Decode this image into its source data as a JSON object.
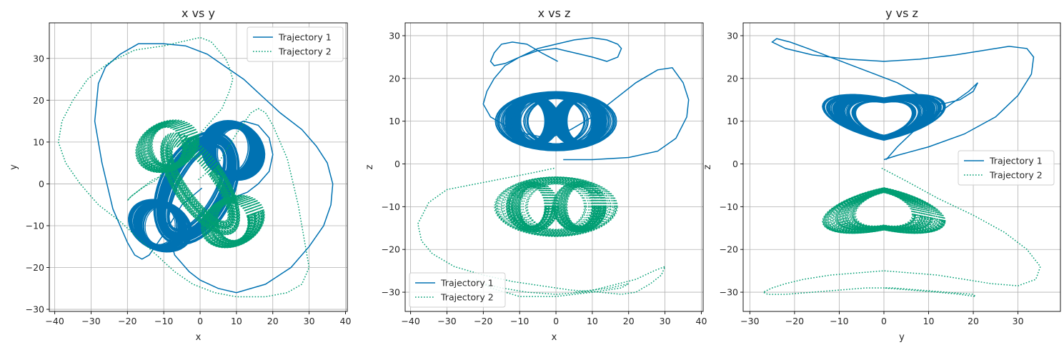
{
  "colors": {
    "trajectory_1": "#0072b2",
    "trajectory_2": "#009e73",
    "grid": "#b0b0b0"
  },
  "chart_data": [
    {
      "type": "line",
      "title": "x vs y",
      "xlabel": "x",
      "ylabel": "y",
      "xlim": [
        -41.5,
        40.5
      ],
      "ylim": [
        -30.5,
        38.5
      ],
      "xticks": [
        -40,
        -30,
        -20,
        -10,
        0,
        10,
        20,
        30,
        40
      ],
      "yticks": [
        -30,
        -20,
        -10,
        0,
        10,
        20,
        30
      ],
      "grid": true,
      "legend": "top-right",
      "series": [
        {
          "name": "Trajectory 1",
          "style": "solid",
          "x": [
            0.5,
            -5,
            -10,
            -14,
            -16,
            -18,
            -20,
            -24,
            -27,
            -29,
            -28,
            -26,
            -22,
            -17,
            -10,
            -4,
            2,
            7,
            12,
            17,
            22,
            28,
            32,
            35,
            36.5,
            36,
            34,
            30,
            25,
            18,
            10,
            5,
            0,
            -3,
            -5,
            -7,
            -8,
            -9,
            -8,
            -6,
            -3,
            0,
            3,
            6,
            9,
            12,
            16,
            19,
            20,
            19,
            16,
            13,
            10,
            8,
            6
          ],
          "y": [
            -1,
            -5,
            -12,
            -17,
            -18,
            -17,
            -14,
            -6,
            5,
            15,
            24,
            28,
            31,
            33.5,
            33.5,
            33,
            31,
            28,
            25,
            21,
            17,
            13,
            9,
            5,
            0,
            -5,
            -10,
            -15,
            -20,
            -24,
            -26,
            -25,
            -23,
            -21,
            -19,
            -17,
            -14,
            -10,
            -5,
            0,
            4,
            8,
            11,
            13,
            14,
            15,
            14,
            11,
            7,
            3,
            0,
            -2,
            -3,
            -2,
            0
          ]
        },
        {
          "name": "Trajectory 2",
          "style": "dotted",
          "x": [
            -0.5,
            5,
            10,
            14,
            16,
            18,
            20,
            24,
            27,
            29,
            30,
            28,
            24,
            18,
            10,
            4,
            -2,
            -7,
            -12,
            -17,
            -22,
            -28,
            -33,
            -37,
            -39,
            -38,
            -35,
            -31,
            -25,
            -18,
            -10,
            -5,
            0,
            3,
            5,
            7,
            8,
            9,
            8,
            6,
            3,
            0,
            -3,
            -6,
            -9,
            -12,
            -16,
            -19,
            -20,
            -19,
            -16,
            -13,
            -10,
            -8,
            -6
          ],
          "y": [
            1,
            5,
            12,
            17,
            18,
            17,
            14,
            6,
            -5,
            -15,
            -20,
            -24,
            -26,
            -27,
            -27,
            -26,
            -24,
            -21,
            -17,
            -13,
            -9,
            -5,
            0,
            5,
            10,
            15,
            20,
            25,
            29,
            32,
            33,
            34,
            35,
            34,
            32,
            30,
            28,
            25,
            22,
            18,
            15,
            12,
            10,
            7,
            4,
            1,
            -1,
            -3,
            -4,
            -3,
            -1,
            1,
            2,
            2,
            1
          ]
        }
      ]
    },
    {
      "type": "line",
      "title": "x vs z",
      "xlabel": "x",
      "ylabel": "z",
      "xlim": [
        -41.5,
        40.5
      ],
      "ylim": [
        -34.5,
        33.0
      ],
      "xticks": [
        -40,
        -30,
        -20,
        -10,
        0,
        10,
        20,
        30,
        40
      ],
      "yticks": [
        -30,
        -20,
        -10,
        0,
        10,
        20,
        30
      ],
      "grid": true,
      "legend": "bottom-left",
      "series": [
        {
          "name": "Trajectory 1",
          "style": "solid",
          "x": [
            0.5,
            -4,
            -8,
            -12,
            -15,
            -17,
            -18,
            -17,
            -14,
            -10,
            -5,
            0,
            5,
            10,
            14,
            17,
            18,
            17,
            14,
            10,
            5,
            0,
            -5,
            -10,
            -14,
            -17,
            -19,
            -20,
            -18,
            -14,
            -8,
            -2,
            4,
            10,
            16,
            22,
            28,
            32,
            35,
            36.5,
            36,
            33,
            28,
            20,
            10,
            2
          ],
          "y": [
            24,
            26,
            28,
            28.5,
            28,
            26,
            24,
            23,
            23.5,
            25,
            27,
            28,
            29,
            29.5,
            29,
            28,
            27,
            25,
            24,
            25,
            26,
            27,
            26.5,
            25,
            23,
            20,
            17,
            14,
            11,
            9,
            7,
            6,
            8,
            11,
            15,
            19,
            22,
            22.5,
            19,
            15,
            11,
            6,
            3,
            1.5,
            1,
            1
          ]
        },
        {
          "name": "Trajectory 2",
          "style": "dotted",
          "x": [
            -0.5,
            -6,
            -12,
            -18,
            -24,
            -30,
            -35,
            -38,
            -37,
            -34,
            -28,
            -20,
            -12,
            -4,
            4,
            12,
            18,
            22,
            26,
            29,
            30,
            27,
            22,
            15,
            8,
            0,
            -8,
            -15,
            -20,
            -22,
            -18,
            -10,
            0,
            10,
            18,
            20,
            15,
            5
          ],
          "y": [
            -1,
            -2,
            -3,
            -4,
            -5,
            -6,
            -9,
            -14,
            -18,
            -21,
            -24,
            -26,
            -27.5,
            -28.5,
            -29.5,
            -30,
            -30.5,
            -30,
            -28,
            -26,
            -24,
            -25,
            -27,
            -28.5,
            -30,
            -30.5,
            -30,
            -29,
            -28,
            -27,
            -29,
            -31,
            -31,
            -30,
            -29,
            -28,
            -29,
            -30
          ]
        }
      ]
    },
    {
      "type": "line",
      "title": "y vs z",
      "xlabel": "y",
      "ylabel": "z",
      "xlim": [
        -31.5,
        39.5
      ],
      "ylim": [
        -34.5,
        33.0
      ],
      "xticks": [
        -30,
        -20,
        -10,
        0,
        10,
        20,
        30
      ],
      "yticks": [
        -30,
        -20,
        -10,
        0,
        10,
        20,
        30
      ],
      "grid": true,
      "legend": "center-right",
      "series": [
        {
          "name": "Trajectory 1",
          "style": "solid",
          "x": [
            0.5,
            3,
            7,
            11,
            15,
            19,
            21,
            20,
            17,
            13,
            8,
            3,
            -2,
            -7,
            -12,
            -17,
            -21,
            -24,
            -25,
            -22,
            -16,
            -8,
            0,
            8,
            16,
            22,
            28,
            32,
            33.5,
            33,
            30,
            25,
            18,
            10,
            3,
            0
          ],
          "y": [
            1,
            4,
            8,
            11,
            14,
            17,
            19,
            17,
            15,
            14,
            16,
            19,
            21,
            23,
            25,
            27,
            28.5,
            29.3,
            28.5,
            27,
            25.5,
            24.5,
            24,
            24.5,
            25.5,
            26.5,
            27.5,
            27,
            25,
            21,
            16,
            11,
            7,
            4,
            2,
            1
          ]
        },
        {
          "name": "Trajectory 2",
          "style": "dotted",
          "x": [
            -0.5,
            5,
            12,
            20,
            27,
            32,
            35,
            34,
            30,
            24,
            18,
            12,
            6,
            0,
            -6,
            -12,
            -18,
            -22,
            -25,
            -27,
            -26,
            -22,
            -16,
            -10,
            -4,
            2,
            8,
            14,
            20,
            20.5,
            17,
            12,
            6,
            0
          ],
          "y": [
            -1,
            -4,
            -8,
            -12,
            -16,
            -20,
            -24,
            -27,
            -28.5,
            -28,
            -27,
            -26,
            -25.5,
            -25,
            -25.5,
            -26,
            -27,
            -28,
            -29,
            -30,
            -30.5,
            -30.5,
            -30,
            -29.5,
            -29,
            -29,
            -29.5,
            -30,
            -30.5,
            -31,
            -30.5,
            -30,
            -29.5,
            -29
          ]
        }
      ]
    }
  ]
}
